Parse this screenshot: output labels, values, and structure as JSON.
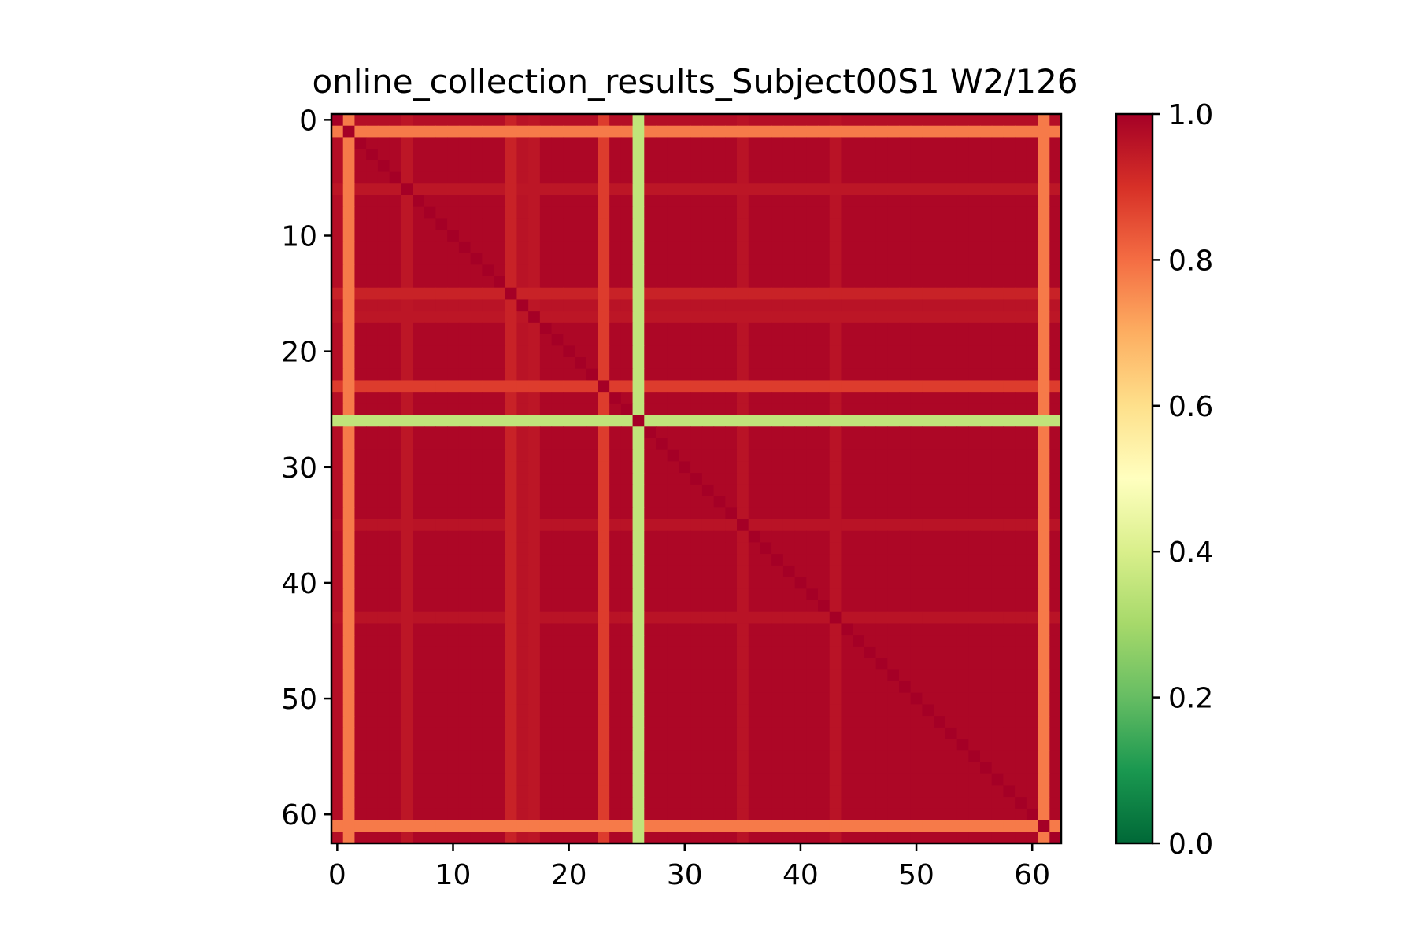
{
  "chart_data": {
    "type": "heatmap",
    "title": "online_collection_results_Subject00S1 W2/126",
    "xlabel": "",
    "ylabel": "",
    "size": 63,
    "xlim": [
      -0.5,
      62.5
    ],
    "ylim": [
      62.5,
      -0.5
    ],
    "x_ticks": [
      0,
      10,
      20,
      30,
      40,
      50,
      60
    ],
    "y_ticks": [
      0,
      10,
      20,
      30,
      40,
      50,
      60
    ],
    "colormap": "RdYlGn",
    "colormap_stops": [
      {
        "value": 0.0,
        "color": "#006837"
      },
      {
        "value": 0.1,
        "color": "#1a9850"
      },
      {
        "value": 0.2,
        "color": "#66bd63"
      },
      {
        "value": 0.3,
        "color": "#a6d96a"
      },
      {
        "value": 0.4,
        "color": "#d9ef8b"
      },
      {
        "value": 0.5,
        "color": "#ffffbf"
      },
      {
        "value": 0.6,
        "color": "#fee08b"
      },
      {
        "value": 0.7,
        "color": "#fdae61"
      },
      {
        "value": 0.8,
        "color": "#f46d43"
      },
      {
        "value": 0.9,
        "color": "#d73027"
      },
      {
        "value": 1.0,
        "color": "#a50026"
      }
    ],
    "colorbar": {
      "range": [
        0.0,
        1.0
      ],
      "ticks": [
        "0.0",
        "0.2",
        "0.4",
        "0.6",
        "0.8",
        "1.0"
      ]
    },
    "base_value": 0.985,
    "row_col_values": [
      {
        "index": 1,
        "value": 0.78
      },
      {
        "index": 26,
        "value": 0.35
      },
      {
        "index": 61,
        "value": 0.78
      },
      {
        "index": 23,
        "value": 0.88
      },
      {
        "index": 15,
        "value": 0.93
      },
      {
        "index": 17,
        "value": 0.955
      },
      {
        "index": 6,
        "value": 0.955
      },
      {
        "index": 35,
        "value": 0.96
      },
      {
        "index": 43,
        "value": 0.96
      },
      {
        "index": 16,
        "value": 0.96
      },
      {
        "index": 0,
        "value": 0.97
      }
    ],
    "diagonal_value": 1.0
  }
}
